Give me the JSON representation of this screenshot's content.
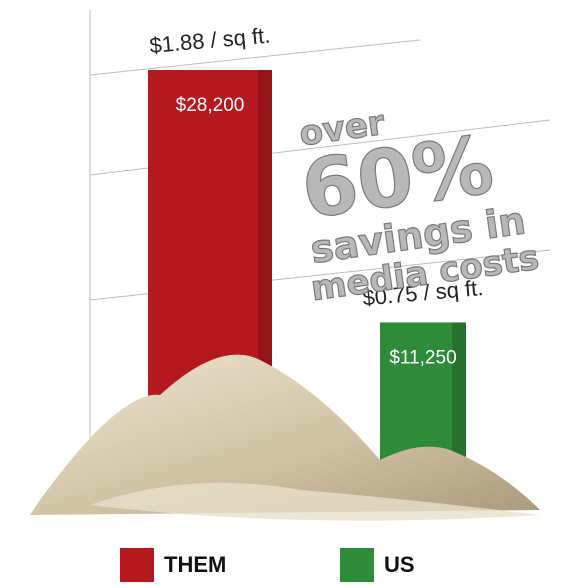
{
  "chart_data": {
    "type": "bar",
    "categories": [
      "THEM",
      "US"
    ],
    "values": [
      28200,
      11250
    ],
    "value_labels": [
      "$28,200",
      "$11,250"
    ],
    "colors": [
      "#b5191f",
      "#2e8b3a"
    ],
    "annotations": [
      "$1.88 / sq ft.",
      "$0.75 / sq ft."
    ],
    "callout": [
      "over",
      "60%",
      "savings in",
      "media costs"
    ]
  }
}
